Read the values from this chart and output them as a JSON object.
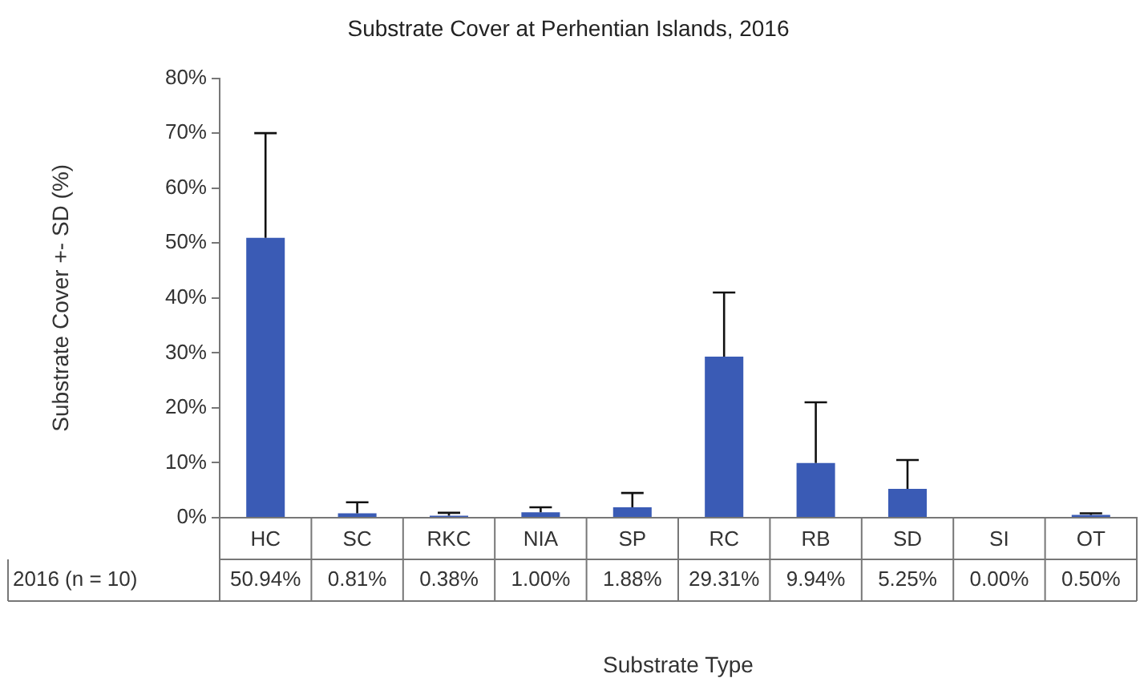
{
  "chart_data": {
    "type": "bar",
    "title": "Substrate Cover at Perhentian Islands, 2016",
    "xlabel": "Substrate Type",
    "ylabel": "Substrate Cover +- SD (%)",
    "categories": [
      "HC",
      "SC",
      "RKC",
      "NIA",
      "SP",
      "RC",
      "RB",
      "SD",
      "SI",
      "OT"
    ],
    "series": [
      {
        "name": "2016 (n = 10)",
        "color": "#3a5bb5",
        "values": [
          50.94,
          0.81,
          0.38,
          1.0,
          1.88,
          29.31,
          9.94,
          5.25,
          0.0,
          0.5
        ],
        "value_labels": [
          "50.94%",
          "0.81%",
          "0.38%",
          "1.00%",
          "1.88%",
          "29.31%",
          "9.94%",
          "5.25%",
          "0.00%",
          "0.50%"
        ],
        "errors": [
          [
            50.94,
            70
          ],
          [
            0.81,
            2.8
          ],
          [
            0.38,
            0.9
          ],
          [
            1.0,
            1.9
          ],
          [
            1.88,
            4.5
          ],
          [
            29.31,
            41
          ],
          [
            9.94,
            21
          ],
          [
            5.25,
            10.5
          ],
          null,
          [
            0.5,
            0.8
          ]
        ]
      }
    ],
    "ylim": [
      0,
      80
    ],
    "yticks": [
      {
        "value": 0,
        "label": "0%"
      },
      {
        "value": 10,
        "label": "10%"
      },
      {
        "value": 20,
        "label": "20%"
      },
      {
        "value": 30,
        "label": "30%"
      },
      {
        "value": 40,
        "label": "40%"
      },
      {
        "value": 50,
        "label": "50%"
      },
      {
        "value": 60,
        "label": "60%"
      },
      {
        "value": 70,
        "label": "70%"
      },
      {
        "value": 80,
        "label": "80%"
      }
    ],
    "grid": false,
    "legend": false
  }
}
